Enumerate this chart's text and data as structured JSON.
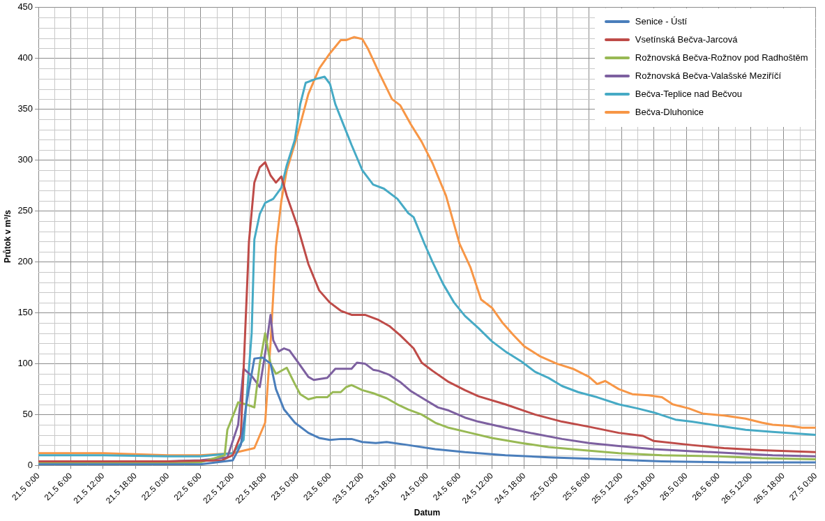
{
  "chart_data": {
    "type": "line",
    "xlabel": "Datum",
    "ylabel": "Průtok v m³/s",
    "xlim": [
      "--05-21T00:00",
      "--05-27T00:00"
    ],
    "xticks": [
      {
        "value": "--05-21T00:00",
        "label": "21.5 0:00"
      },
      {
        "value": "--05-21T06:00",
        "label": "21.5 6:00"
      },
      {
        "value": "--05-21T12:00",
        "label": "21.5 12:00"
      },
      {
        "value": "--05-21T18:00",
        "label": "21.5 18:00"
      },
      {
        "value": "--05-22T00:00",
        "label": "22.5 0:00"
      },
      {
        "value": "--05-22T06:00",
        "label": "22.5 6:00"
      },
      {
        "value": "--05-22T12:00",
        "label": "22.5 12:00"
      },
      {
        "value": "--05-22T18:00",
        "label": "22.5 18:00"
      },
      {
        "value": "--05-23T00:00",
        "label": "23.5 0:00"
      },
      {
        "value": "--05-23T06:00",
        "label": "23.5 6:00"
      },
      {
        "value": "--05-23T12:00",
        "label": "23.5 12:00"
      },
      {
        "value": "--05-23T18:00",
        "label": "23.5 18:00"
      },
      {
        "value": "--05-24T00:00",
        "label": "24.5 0:00"
      },
      {
        "value": "--05-24T06:00",
        "label": "24.5 6:00"
      },
      {
        "value": "--05-24T12:00",
        "label": "24.5 12:00"
      },
      {
        "value": "--05-24T18:00",
        "label": "24.5 18:00"
      },
      {
        "value": "--05-25T00:00",
        "label": "25.5 0:00"
      },
      {
        "value": "--05-25T06:00",
        "label": "25.5 6:00"
      },
      {
        "value": "--05-25T12:00",
        "label": "25.5 12:00"
      },
      {
        "value": "--05-25T18:00",
        "label": "25.5 18:00"
      },
      {
        "value": "--05-26T00:00",
        "label": "26.5 0:00"
      },
      {
        "value": "--05-26T06:00",
        "label": "26.5 6:00"
      },
      {
        "value": "--05-26T12:00",
        "label": "26.5 12:00"
      },
      {
        "value": "--05-26T18:00",
        "label": "26.5 18:00"
      },
      {
        "value": "--05-27T00:00",
        "label": "27.5 0:00"
      }
    ],
    "ylim": [
      0,
      450
    ],
    "yticks": [
      0,
      50,
      100,
      150,
      200,
      250,
      300,
      350,
      400,
      450
    ],
    "grid": true,
    "legend": "top right",
    "marker": "none",
    "line_style": "solid",
    "series": [
      {
        "name": "Senice - Ústí",
        "color": "#4a7ebb",
        "x": [
          "--05-21T00:00",
          "--05-21T12:00",
          "--05-22T00:00",
          "--05-22T06:00",
          "--05-22T12:00",
          "--05-22T13:30",
          "--05-22T14:30",
          "--05-22T15:30",
          "--05-22T16:00",
          "--05-22T17:30",
          "--05-22T19:00",
          "--05-22T20:00",
          "--05-22T21:30",
          "--05-22T23:30",
          "--05-23T02:00",
          "--05-23T04:00",
          "--05-23T06:00",
          "--05-23T08:00",
          "--05-23T10:00",
          "--05-23T12:00",
          "--05-23T14:30",
          "--05-23T16:30",
          "--05-23T20:30",
          "--05-24T01:30",
          "--05-24T07:00",
          "--05-24T14:30",
          "--05-24T22:30",
          "--05-25T09:00",
          "--05-25T19:30",
          "--05-26T08:30",
          "--05-27T00:00"
        ],
        "values": [
          1,
          1,
          1,
          1,
          5,
          20,
          60,
          90,
          105,
          106,
          100,
          75,
          55,
          42,
          32,
          27,
          25,
          26,
          26,
          23,
          22,
          23,
          20,
          16,
          13,
          10,
          8,
          6,
          4,
          3,
          3
        ]
      },
      {
        "name": "Vsetínská Bečva-Jarcová",
        "color": "#be4b48",
        "x": [
          "--05-21T00:00",
          "--05-21T12:00",
          "--05-22T00:00",
          "--05-22T10:00",
          "--05-22T12:00",
          "--05-22T13:30",
          "--05-22T15:00",
          "--05-22T16:00",
          "--05-22T17:00",
          "--05-22T18:00",
          "--05-22T19:00",
          "--05-22T20:00",
          "--05-22T21:00",
          "--05-22T22:00",
          "--05-23T00:00",
          "--05-23T02:00",
          "--05-23T04:00",
          "--05-23T06:00",
          "--05-23T08:00",
          "--05-23T10:00",
          "--05-23T12:30",
          "--05-23T15:00",
          "--05-23T17:00",
          "--05-23T19:00",
          "--05-23T21:30",
          "--05-23T23:00",
          "--05-24T01:00",
          "--05-24T04:00",
          "--05-24T07:00",
          "--05-24T09:30",
          "--05-24T14:30",
          "--05-24T20:00",
          "--05-25T01:00",
          "--05-25T06:00",
          "--05-25T11:30",
          "--05-25T16:00",
          "--05-25T18:00",
          "--05-26T01:00",
          "--05-26T07:00",
          "--05-26T14:00",
          "--05-27T00:00"
        ],
        "values": [
          4,
          4,
          4,
          5,
          10,
          30,
          220,
          278,
          293,
          298,
          285,
          278,
          284,
          265,
          235,
          198,
          172,
          160,
          152,
          148,
          148,
          143,
          137,
          128,
          115,
          101,
          93,
          82,
          74,
          68,
          60,
          50,
          43,
          38,
          32,
          29,
          24,
          20,
          17,
          15,
          13
        ]
      },
      {
        "name": "Rožnovská Bečva-Rožnov pod Radhoštěm",
        "color": "#98b954",
        "x": [
          "--05-21T00:00",
          "--05-21T12:00",
          "--05-22T00:00",
          "--05-22T06:00",
          "--05-22T10:30",
          "--05-22T11:00",
          "--05-22T12:30",
          "--05-22T13:00",
          "--05-22T14:30",
          "--05-22T16:00",
          "--05-22T17:00",
          "--05-22T18:00",
          "--05-22T19:00",
          "--05-22T20:00",
          "--05-22T22:00",
          "--05-22T23:30",
          "--05-23T00:30",
          "--05-23T02:00",
          "--05-23T03:30",
          "--05-23T05:30",
          "--05-23T06:30",
          "--05-23T08:00",
          "--05-23T09:00",
          "--05-23T10:00",
          "--05-23T12:00",
          "--05-23T14:00",
          "--05-23T16:30",
          "--05-23T18:30",
          "--05-23T20:30",
          "--05-23T23:00",
          "--05-24T01:30",
          "--05-24T04:00",
          "--05-24T08:00",
          "--05-24T12:00",
          "--05-24T17:30",
          "--05-24T22:30",
          "--05-25T05:00",
          "--05-25T11:30",
          "--05-25T19:30",
          "--05-26T06:00",
          "--05-26T14:00",
          "--05-27T00:00"
        ],
        "values": [
          2,
          2,
          2,
          3,
          10,
          35,
          55,
          62,
          60,
          57,
          100,
          130,
          100,
          90,
          96,
          80,
          70,
          65,
          67,
          67,
          72,
          72,
          77,
          79,
          74,
          71,
          66,
          60,
          55,
          50,
          42,
          37,
          32,
          27,
          22,
          18,
          15,
          12,
          10,
          9,
          7,
          6
        ]
      },
      {
        "name": "Rožnovská Bečva-Valašské Meziříčí",
        "color": "#7d60a0",
        "x": [
          "--05-21T00:00",
          "--05-21T12:00",
          "--05-22T00:00",
          "--05-22T06:00",
          "--05-22T11:00",
          "--05-22T13:00",
          "--05-22T14:00",
          "--05-22T15:30",
          "--05-22T17:00",
          "--05-22T18:00",
          "--05-22T19:00",
          "--05-22T19:30",
          "--05-22T20:30",
          "--05-22T21:30",
          "--05-22T22:30",
          "--05-23T00:00",
          "--05-23T02:00",
          "--05-23T03:00",
          "--05-23T05:30",
          "--05-23T07:00",
          "--05-23T08:00",
          "--05-23T10:00",
          "--05-23T11:00",
          "--05-23T12:30",
          "--05-23T14:00",
          "--05-23T15:00",
          "--05-23T17:00",
          "--05-23T19:00",
          "--05-23T21:00",
          "--05-23T23:30",
          "--05-24T02:00",
          "--05-24T04:00",
          "--05-24T07:00",
          "--05-24T09:30",
          "--05-24T14:30",
          "--05-24T20:00",
          "--05-25T01:00",
          "--05-25T06:00",
          "--05-25T11:30",
          "--05-25T18:00",
          "--05-26T01:00",
          "--05-26T08:30",
          "--05-26T16:00",
          "--05-27T00:00"
        ],
        "values": [
          4,
          4,
          4,
          5,
          8,
          40,
          95,
          88,
          77,
          110,
          148,
          123,
          112,
          115,
          113,
          102,
          87,
          84,
          86,
          95,
          95,
          95,
          101,
          100,
          94,
          93,
          89,
          82,
          73,
          65,
          57,
          54,
          47,
          43,
          37,
          31,
          26,
          22,
          19,
          16,
          14,
          12,
          10,
          9
        ]
      },
      {
        "name": "Bečva-Teplice nad Bečvou",
        "color": "#46aac5",
        "x": [
          "--05-21T00:00",
          "--05-21T12:00",
          "--05-22T00:00",
          "--05-22T06:00",
          "--05-22T12:00",
          "--05-22T14:00",
          "--05-22T15:30",
          "--05-22T16:00",
          "--05-22T17:00",
          "--05-22T18:00",
          "--05-22T19:30",
          "--05-22T21:00",
          "--05-22T22:00",
          "--05-22T23:30",
          "--05-23T00:30",
          "--05-23T01:30",
          "--05-23T03:30",
          "--05-23T05:00",
          "--05-23T06:00",
          "--05-23T07:00",
          "--05-23T08:30",
          "--05-23T10:00",
          "--05-23T12:00",
          "--05-23T14:00",
          "--05-23T16:00",
          "--05-23T18:30",
          "--05-23T20:30",
          "--05-23T21:30",
          "--05-23T23:30",
          "--05-24T01:00",
          "--05-24T03:00",
          "--05-24T05:00",
          "--05-24T07:00",
          "--05-24T09:30",
          "--05-24T12:00",
          "--05-24T14:30",
          "--05-24T17:30",
          "--05-24T20:00",
          "--05-24T22:30",
          "--05-25T01:00",
          "--05-25T04:00",
          "--05-25T07:30",
          "--05-25T11:30",
          "--05-25T15:00",
          "--05-25T18:00",
          "--05-25T22:00",
          "--05-26T01:00",
          "--05-26T06:00",
          "--05-26T11:00",
          "--05-26T16:00",
          "--05-27T00:00"
        ],
        "values": [
          10,
          10,
          9,
          9,
          12,
          25,
          130,
          222,
          247,
          258,
          262,
          273,
          295,
          320,
          355,
          376,
          380,
          382,
          375,
          355,
          335,
          315,
          290,
          276,
          272,
          262,
          248,
          244,
          218,
          200,
          178,
          160,
          147,
          135,
          122,
          112,
          102,
          92,
          86,
          78,
          72,
          67,
          60,
          56,
          52,
          45,
          43,
          39,
          35,
          33,
          30
        ]
      },
      {
        "name": "Bečva-Dluhonice",
        "color": "#f79646",
        "x": [
          "--05-21T00:00",
          "--05-21T06:00",
          "--05-21T12:00",
          "--05-21T18:00",
          "--05-22T00:00",
          "--05-22T06:00",
          "--05-22T12:00",
          "--05-22T16:00",
          "--05-22T18:00",
          "--05-22T19:00",
          "--05-22T20:00",
          "--05-22T21:00",
          "--05-22T22:00",
          "--05-23T00:00",
          "--05-23T02:00",
          "--05-23T04:00",
          "--05-23T06:00",
          "--05-23T08:00",
          "--05-23T09:00",
          "--05-23T10:30",
          "--05-23T12:00",
          "--05-23T13:00",
          "--05-23T15:00",
          "--05-23T17:30",
          "--05-23T19:00",
          "--05-23T21:00",
          "--05-23T23:00",
          "--05-24T01:00",
          "--05-24T03:30",
          "--05-24T06:00",
          "--05-24T08:00",
          "--05-24T10:00",
          "--05-24T12:00",
          "--05-24T14:00",
          "--05-24T16:00",
          "--05-24T18:00",
          "--05-24T21:00",
          "--05-25T00:00",
          "--05-25T03:00",
          "--05-25T06:00",
          "--05-25T07:30",
          "--05-25T09:00",
          "--05-25T11:30",
          "--05-25T14:00",
          "--05-25T17:00",
          "--05-25T19:30",
          "--05-25T21:30",
          "--05-26T00:30",
          "--05-26T03:00",
          "--05-26T07:00",
          "--05-26T11:00",
          "--05-26T14:00",
          "--05-26T16:00",
          "--05-26T19:00",
          "--05-26T21:30",
          "--05-27T00:00"
        ],
        "values": [
          12,
          12,
          12,
          11,
          10,
          10,
          12,
          17,
          42,
          120,
          215,
          260,
          290,
          325,
          365,
          390,
          405,
          418,
          418,
          421,
          419,
          410,
          387,
          360,
          354,
          335,
          318,
          297,
          265,
          218,
          195,
          163,
          155,
          140,
          128,
          117,
          107,
          100,
          95,
          87,
          80,
          83,
          75,
          70,
          69,
          67,
          60,
          56,
          51,
          49,
          46,
          42,
          40,
          39,
          37,
          37
        ]
      }
    ]
  }
}
